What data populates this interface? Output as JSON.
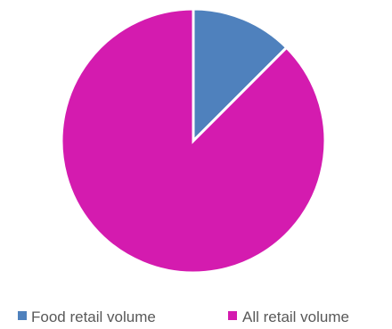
{
  "chart_data": {
    "type": "pie",
    "categories": [
      "Food retail volume",
      "All retail volume"
    ],
    "values": [
      12.5,
      87.5
    ],
    "colors": [
      "#4F81BD",
      "#D41BAF"
    ],
    "slice_border_color": "#FFFFFF",
    "start_angle_deg": 0,
    "direction": "clockwise",
    "legend_position": "bottom",
    "title": ""
  }
}
